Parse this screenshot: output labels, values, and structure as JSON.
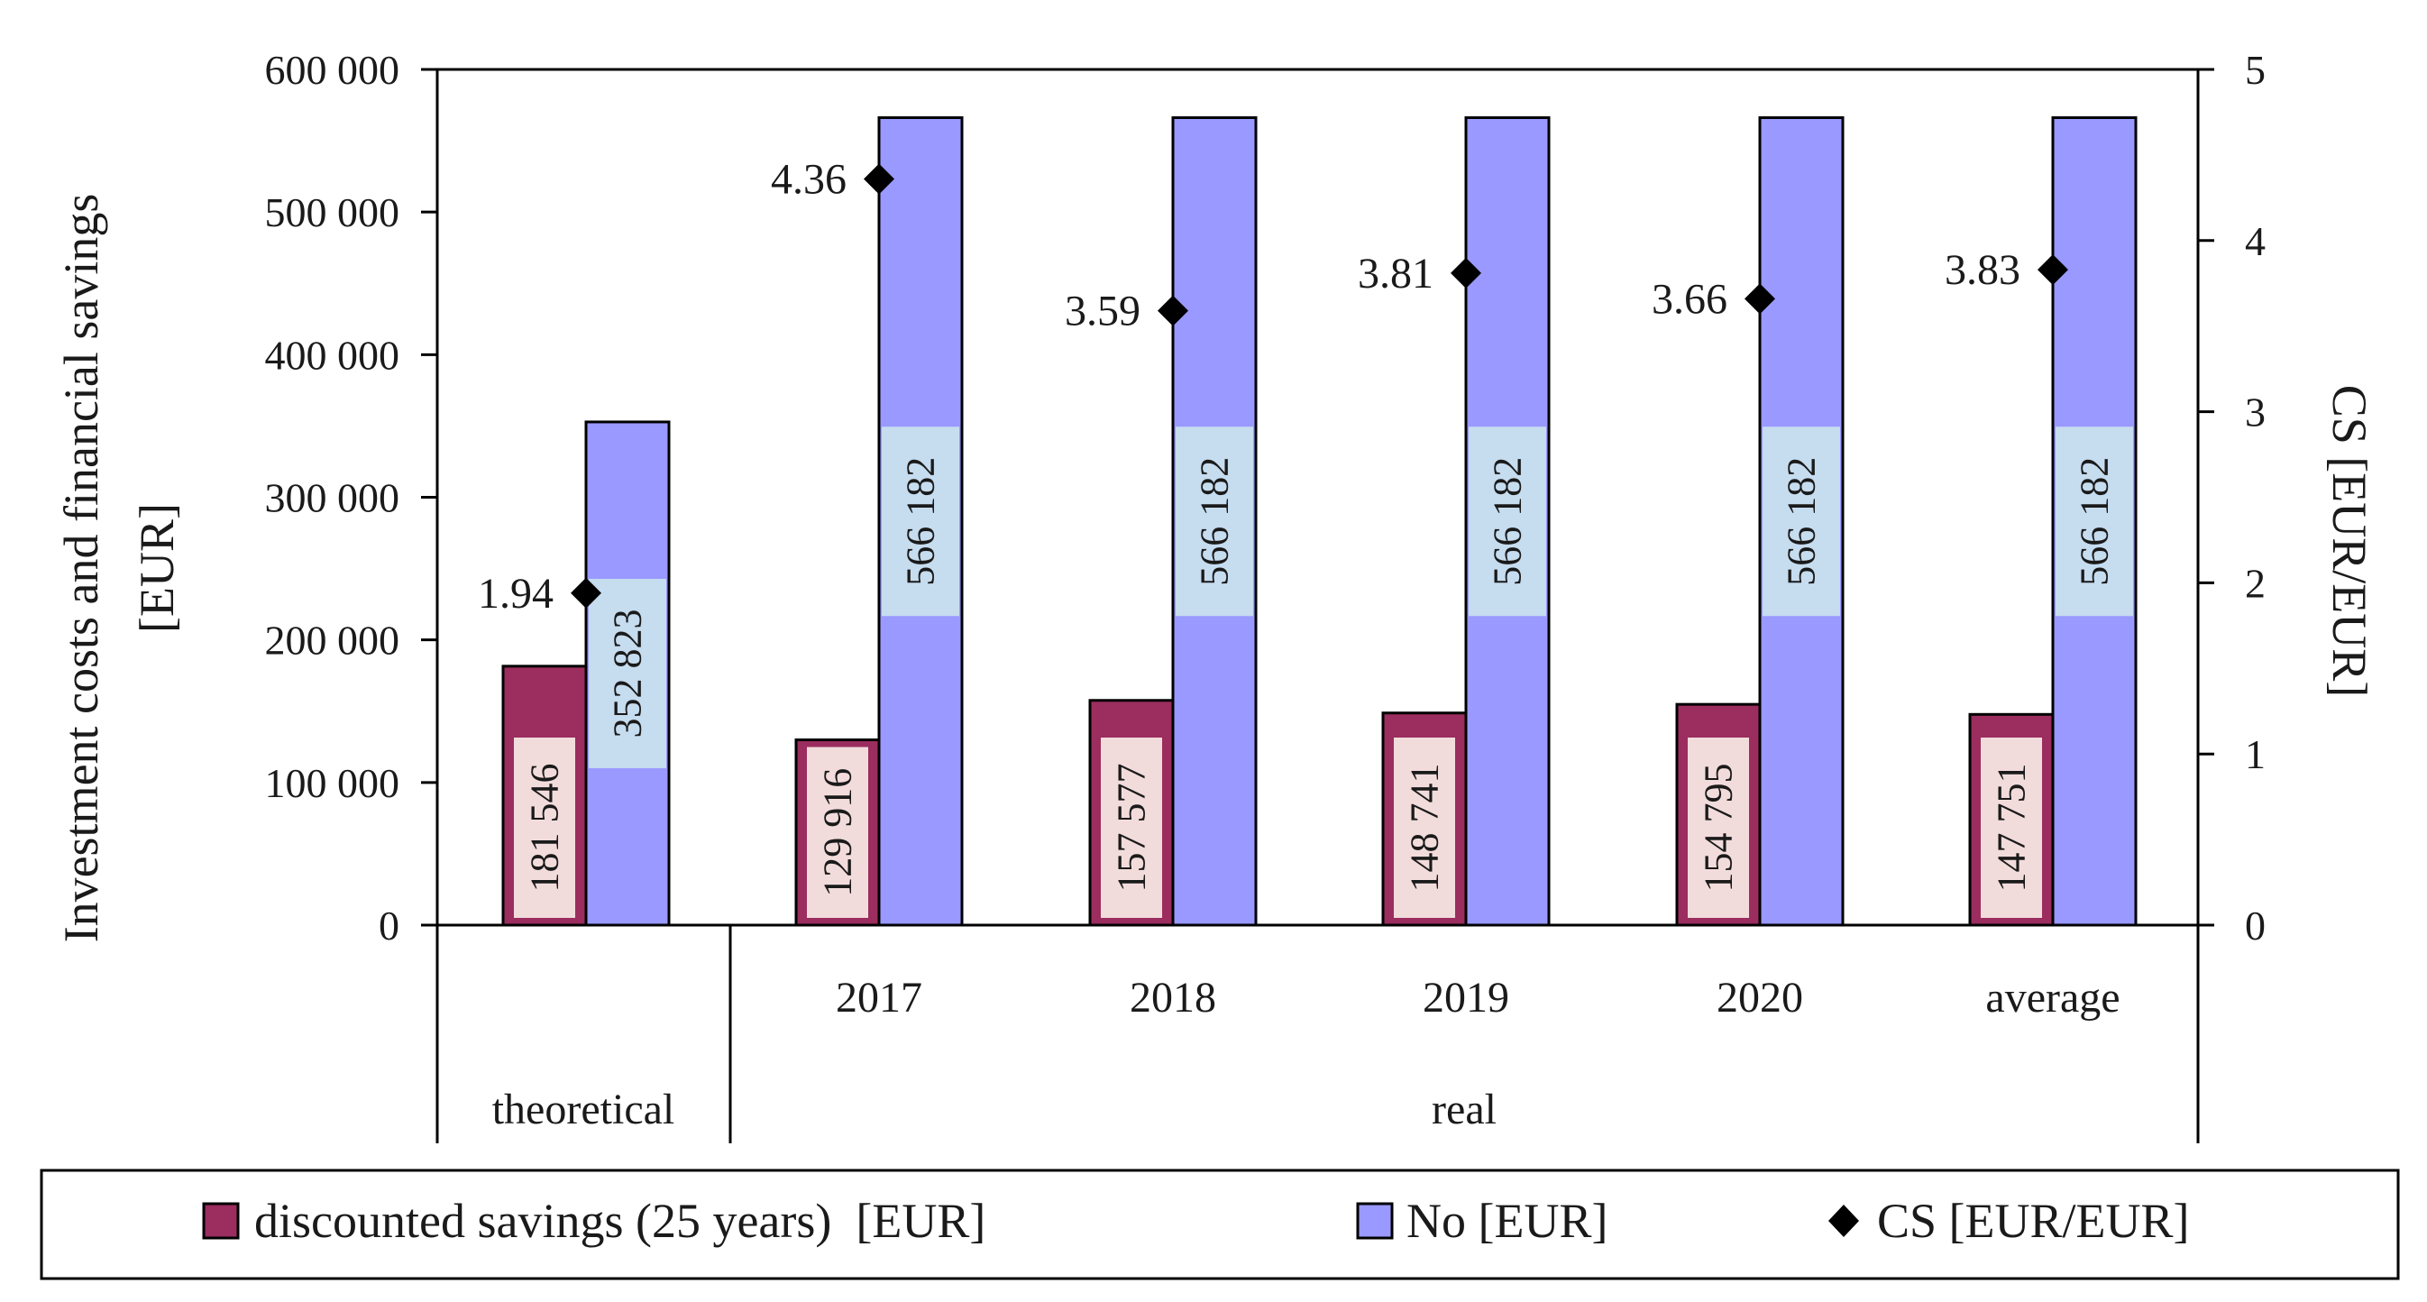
{
  "chart_data": {
    "type": "bar",
    "categories": [
      "theoretical",
      "2017",
      "2018",
      "2019",
      "2020",
      "average"
    ],
    "category_groups": [
      {
        "label": "theoretical",
        "members": [
          "theoretical"
        ]
      },
      {
        "label": "real",
        "members": [
          "2017",
          "2018",
          "2019",
          "2020",
          "average"
        ]
      }
    ],
    "series": [
      {
        "name": "discounted savings (25 years)  [EUR]",
        "type": "bar",
        "axis": "left",
        "color": "#9b2d5f",
        "values": [
          181546,
          129916,
          157577,
          148741,
          154795,
          147751
        ],
        "labels": [
          "181 546",
          "129 916",
          "157 577",
          "148 741",
          "154 795",
          "147 751"
        ]
      },
      {
        "name": "No [EUR]",
        "type": "bar",
        "axis": "left",
        "color": "#9999ff",
        "values": [
          352823,
          566182,
          566182,
          566182,
          566182,
          566182
        ],
        "labels": [
          "352 823",
          "566 182",
          "566 182",
          "566 182",
          "566 182",
          "566 182"
        ]
      },
      {
        "name": "CS [EUR/EUR]",
        "type": "scatter",
        "axis": "right",
        "marker": "diamond",
        "color": "#000000",
        "values": [
          1.94,
          4.36,
          3.59,
          3.81,
          3.66,
          3.83
        ],
        "labels": [
          "1.94",
          "4.36",
          "3.59",
          "3.81",
          "3.66",
          "3.83"
        ]
      }
    ],
    "ylabel": "Investment costs and financial savings [EUR]",
    "y2label": "CS [EUR/EUR]",
    "ylim": [
      0,
      600000
    ],
    "y2lim": [
      0,
      5
    ],
    "yticks": [
      0,
      100000,
      200000,
      300000,
      400000,
      500000,
      600000
    ],
    "ytick_labels": [
      "0",
      "100 000",
      "200 000",
      "300 000",
      "400 000",
      "500 000",
      "600 000"
    ],
    "y2ticks": [
      0,
      1,
      2,
      3,
      4,
      5
    ],
    "y2tick_labels": [
      "0",
      "1",
      "2",
      "3",
      "4",
      "5"
    ],
    "grid": false,
    "legend": "bottom"
  }
}
